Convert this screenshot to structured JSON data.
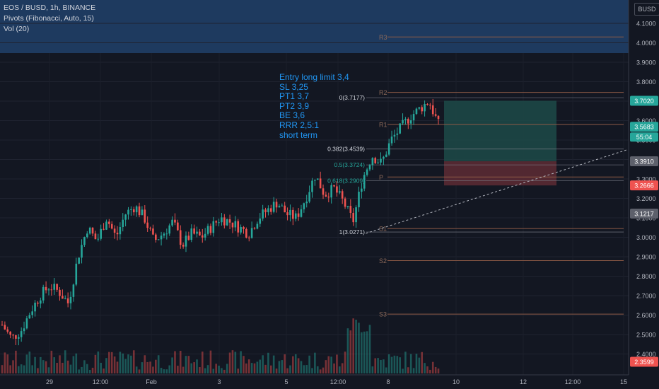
{
  "legend": {
    "symbol": "EOS / BUSD, 1h, BINANCE",
    "pivots": "Pivots (Fibonacci, Auto, 15)",
    "vol": "Vol (20)"
  },
  "note_lines": [
    "Entry long limit 3,4",
    "SL 3,25",
    "PT1 3,7",
    "PT2 3,9",
    "BE 3,6",
    "RRR 2,5:1",
    "short term"
  ],
  "axis_title": "BUSD",
  "colors": {
    "background": "#131722",
    "up": "#26a69a",
    "down": "#ef5350",
    "note_text": "#2196f3",
    "pivot_band": "#1e3a5f",
    "pivot_line": "#8d5a46",
    "target_zone": "#1d4a48",
    "stop_zone": "#5a2a33",
    "fib_text": "#d1d4dc"
  },
  "chart_data": {
    "type": "candlestick",
    "timeframe": "1h",
    "y_axis": {
      "min": 2.33,
      "max": 4.16,
      "ticks": [
        "4.1000",
        "4.0000",
        "3.9000",
        "3.8000",
        "3.7000",
        "3.6000",
        "3.5000",
        "3.4000",
        "3.3000",
        "3.2000",
        "3.1000",
        "3.0000",
        "2.9000",
        "2.8000",
        "2.7000",
        "2.6000",
        "2.5000",
        "2.4000"
      ]
    },
    "x_axis": {
      "ticks": [
        "29",
        "12:00",
        "Feb",
        "3",
        "5",
        "12:00",
        "8",
        "10",
        "12",
        "12:00",
        "15"
      ]
    },
    "price_tags": [
      {
        "value": 3.702,
        "label": "3.7020",
        "color": "#26a69a"
      },
      {
        "value": 3.5683,
        "label": "3.5683",
        "color": "#26a69a",
        "sub": "55:04"
      },
      {
        "value": 3.391,
        "label": "3.3910",
        "color": "#5d606b"
      },
      {
        "value": 3.2666,
        "label": "3.2666",
        "color": "#ef5350"
      },
      {
        "value": 3.1217,
        "label": "3.1217",
        "color": "#5d606b"
      },
      {
        "value": 2.3599,
        "label": "2.3599",
        "color": "#ef5350"
      }
    ],
    "pivots": [
      {
        "label": "R3",
        "value": 4.03
      },
      {
        "label": "R2",
        "value": 3.745
      },
      {
        "label": "R1",
        "value": 3.58
      },
      {
        "label": "P",
        "value": 3.31
      },
      {
        "label": "S1",
        "value": 3.045
      },
      {
        "label": "S2",
        "value": 2.88
      },
      {
        "label": "S3",
        "value": 2.605
      }
    ],
    "fibonacci": [
      {
        "level": "0",
        "label": "0(3.7177)",
        "value": 3.7177
      },
      {
        "level": "0.382",
        "label": "0.382(3.4539)",
        "value": 3.4539
      },
      {
        "level": "0.5",
        "label": "0.5(3.3724)",
        "value": 3.3724
      },
      {
        "level": "0.618",
        "label": "0.618(3.2909)",
        "value": 3.2909
      },
      {
        "level": "1",
        "label": "1(3.0271)",
        "value": 3.0271
      }
    ],
    "position": {
      "entry": 3.391,
      "target": 3.702,
      "stop": 3.2666
    },
    "trendline": [
      {
        "x_frac": 0.555,
        "value": 3.02
      },
      {
        "x_frac": 0.97,
        "value": 3.47
      }
    ],
    "close_price": [
      3.1,
      3.1,
      3.2,
      3.3,
      3.2,
      3.0,
      3.1,
      3.1,
      3.0,
      3.0,
      3.2,
      3.4,
      3.3,
      3.4,
      3.2,
      3.6,
      3.7,
      3.6
    ]
  }
}
